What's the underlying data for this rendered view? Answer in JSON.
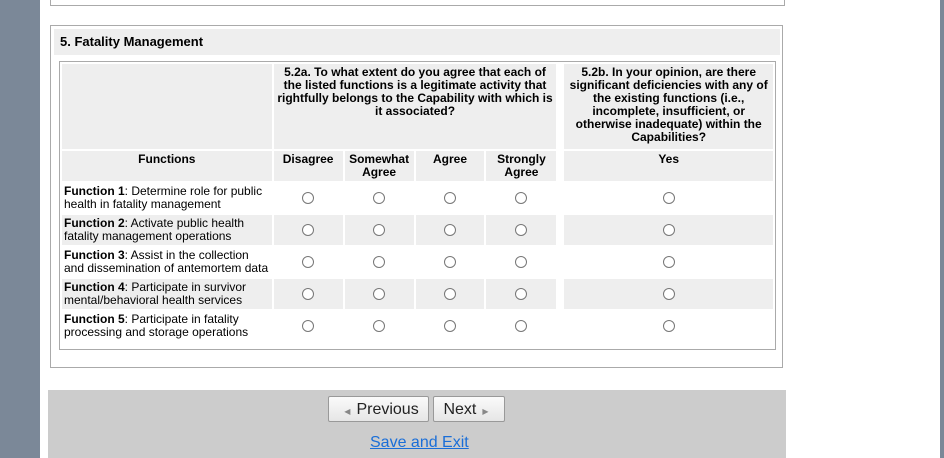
{
  "section": {
    "title": "5. Fatality Management"
  },
  "table": {
    "q_a": "5.2a. To what extent do you agree that each of the listed functions is a legitimate activity that rightfully belongs to the Capability with which is it associated?",
    "q_b": "5.2b. In your opinion, are there significant deficiencies with any of the existing functions (i.e., incomplete, insufficient, or otherwise inadequate) within the Capabilities?",
    "col_functions": "Functions",
    "cols_a": [
      "Disagree",
      "Somewhat Agree",
      "Agree",
      "Strongly Agree"
    ],
    "col_b": "Yes",
    "rows": [
      {
        "label": "Function 1",
        "text": ": Determine role for public health in fatality management"
      },
      {
        "label": "Function 2",
        "text": ": Activate public health fatality management operations"
      },
      {
        "label": "Function 3",
        "text": ": Assist in the collection and dissemination of antemortem data"
      },
      {
        "label": "Function 4",
        "text": ": Participate in survivor mental/behavioral health services"
      },
      {
        "label": "Function 5",
        "text": ": Participate in fatality processing and storage operations"
      }
    ]
  },
  "nav": {
    "previous": "Previous",
    "next": "Next",
    "save_exit": "Save and Exit"
  }
}
